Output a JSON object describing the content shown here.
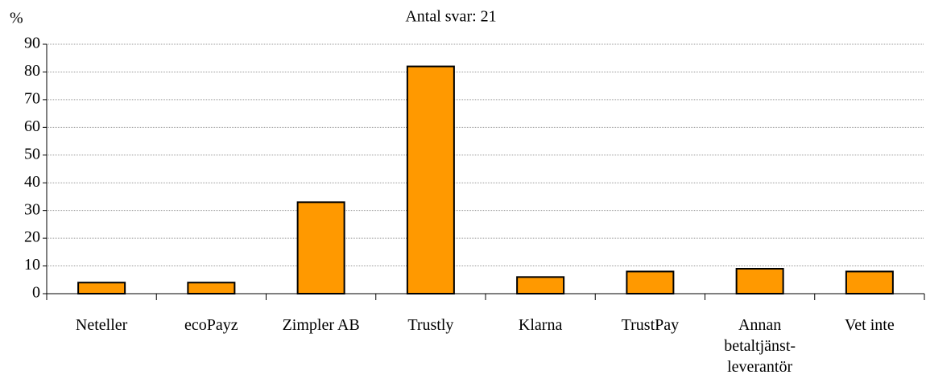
{
  "chart_data": {
    "type": "bar",
    "title": "Antal svar: 21",
    "ylabel": "%",
    "categories": [
      "Neteller",
      "ecoPayz",
      "Zimpler AB",
      "Trustly",
      "Klarna",
      "TrustPay",
      "Annan betaltjänst-leverantör",
      "Vet inte"
    ],
    "values": [
      4,
      4,
      33,
      82,
      6,
      8,
      9,
      8
    ],
    "color": "#ff9900",
    "ylim": [
      0,
      90
    ],
    "yticks": [
      0,
      10,
      20,
      30,
      40,
      50,
      60,
      70,
      80,
      90
    ],
    "grid": true
  }
}
